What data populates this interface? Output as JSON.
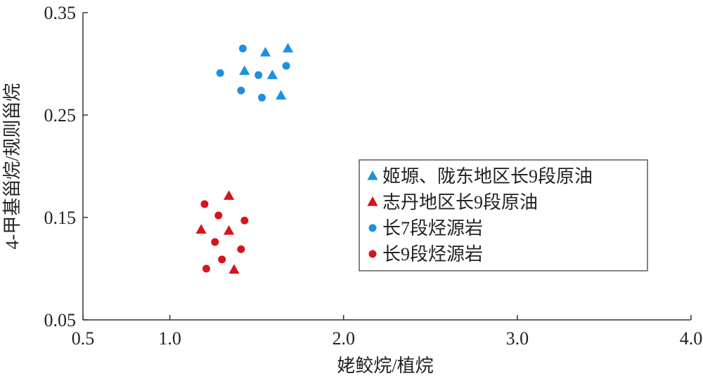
{
  "chart_data": {
    "type": "scatter",
    "xlabel": "姥鲛烷/植烷",
    "ylabel": "4-甲基甾烷/规则甾烷",
    "xlim": [
      0.5,
      4.0
    ],
    "ylim": [
      0.05,
      0.35
    ],
    "xticks": [
      0.5,
      1.0,
      2.0,
      3.0,
      4.0
    ],
    "xtick_labels": [
      "0.5",
      "1.0",
      "2.0",
      "3.0",
      "4.0"
    ],
    "yticks": [
      0.05,
      0.15,
      0.25,
      0.35
    ],
    "ytick_labels": [
      "0.05",
      "0.15",
      "0.25",
      "0.35"
    ],
    "grid": false,
    "legend_position": "right",
    "series": [
      {
        "name": "姬塬、陇东地区长9段原油",
        "marker": "triangle",
        "color": "#1e90e0",
        "points": [
          [
            1.68,
            0.315
          ],
          [
            1.55,
            0.311
          ],
          [
            1.43,
            0.293
          ],
          [
            1.59,
            0.289
          ],
          [
            1.64,
            0.269
          ]
        ]
      },
      {
        "name": "志丹地区长9段原油",
        "marker": "triangle",
        "color": "#d7141e",
        "points": [
          [
            1.34,
            0.171
          ],
          [
            1.18,
            0.138
          ],
          [
            1.34,
            0.137
          ],
          [
            1.37,
            0.099
          ]
        ]
      },
      {
        "name": "长7段烃源岩",
        "marker": "circle",
        "color": "#1e90e0",
        "points": [
          [
            1.42,
            0.315
          ],
          [
            1.29,
            0.291
          ],
          [
            1.51,
            0.289
          ],
          [
            1.67,
            0.298
          ],
          [
            1.41,
            0.274
          ],
          [
            1.53,
            0.267
          ]
        ]
      },
      {
        "name": "长9段烃源岩",
        "marker": "circle",
        "color": "#d7141e",
        "points": [
          [
            1.2,
            0.163
          ],
          [
            1.28,
            0.152
          ],
          [
            1.43,
            0.147
          ],
          [
            1.26,
            0.126
          ],
          [
            1.41,
            0.119
          ],
          [
            1.3,
            0.109
          ],
          [
            1.21,
            0.1
          ]
        ]
      }
    ]
  }
}
